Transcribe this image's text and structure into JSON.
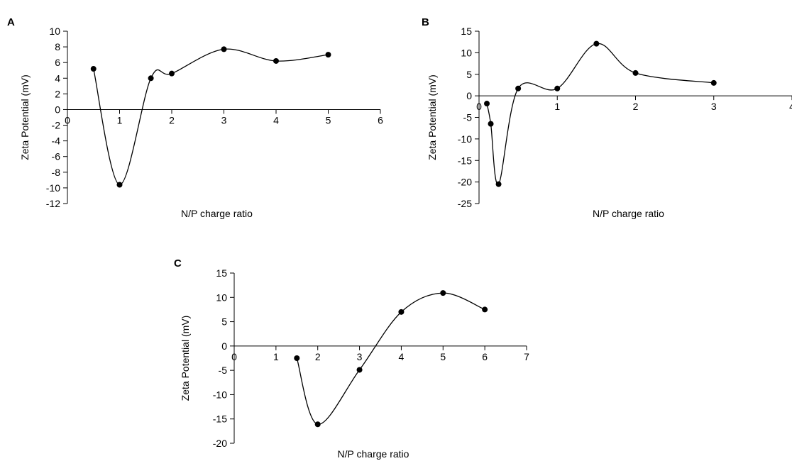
{
  "chart_data": [
    {
      "type": "line",
      "panel_label": "A",
      "xlabel": "N/P charge ratio",
      "ylabel": "Zeta Potential (mV)",
      "xlim": [
        0,
        6
      ],
      "ylim": [
        -12,
        10
      ],
      "x_ticks": [
        0,
        1,
        2,
        3,
        4,
        5,
        6
      ],
      "y_ticks": [
        -12,
        -10,
        -8,
        -6,
        -4,
        -2,
        0,
        2,
        4,
        6,
        8,
        10
      ],
      "smooth": true,
      "marker": "circle",
      "grid": false,
      "series": [
        {
          "x": [
            0.5,
            1,
            1.6,
            2,
            3,
            4,
            5
          ],
          "y": [
            5.2,
            -9.6,
            4.0,
            4.6,
            7.7,
            6.2,
            7.0
          ]
        }
      ]
    },
    {
      "type": "line",
      "panel_label": "B",
      "xlabel": "N/P charge ratio",
      "ylabel": "Zeta Potential (mV)",
      "xlim": [
        0,
        4
      ],
      "ylim": [
        -25,
        15
      ],
      "x_ticks": [
        0,
        1,
        2,
        3,
        4
      ],
      "y_ticks": [
        -25,
        -20,
        -15,
        -10,
        -5,
        0,
        5,
        10,
        15
      ],
      "smooth": true,
      "marker": "circle",
      "grid": false,
      "series": [
        {
          "x": [
            0.1,
            0.15,
            0.25,
            0.5,
            1,
            1.5,
            2,
            3
          ],
          "y": [
            -1.8,
            -6.5,
            -20.5,
            1.7,
            1.7,
            12.1,
            5.3,
            3.0
          ]
        }
      ]
    },
    {
      "type": "line",
      "panel_label": "C",
      "xlabel": "N/P charge ratio",
      "ylabel": "Zeta Potential (mV)",
      "xlim": [
        0,
        7
      ],
      "ylim": [
        -20,
        15
      ],
      "x_ticks": [
        0,
        1,
        2,
        3,
        4,
        5,
        6,
        7
      ],
      "y_ticks": [
        -20,
        -15,
        -10,
        -5,
        0,
        5,
        10,
        15
      ],
      "smooth": true,
      "marker": "circle",
      "grid": false,
      "series": [
        {
          "x": [
            1.5,
            2,
            3,
            4,
            5,
            6
          ],
          "y": [
            -2.5,
            -16.1,
            -4.9,
            7.0,
            10.9,
            7.5
          ]
        }
      ]
    }
  ]
}
